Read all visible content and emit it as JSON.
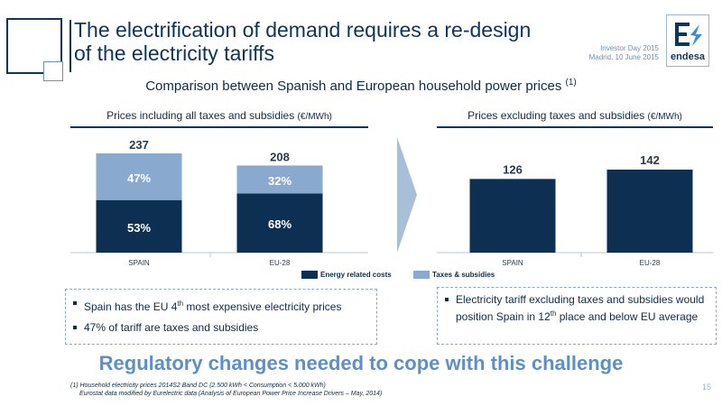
{
  "header": {
    "title_line1": "The electrification of demand requires a re-design",
    "title_line2": "of the electricity tariffs",
    "event_line1": "Investor Day 2015",
    "event_line2": "Madrid, 10 June 2015",
    "logo_text": "endesa"
  },
  "subtitle": {
    "text": "Comparison between Spanish and European household power prices ",
    "footnote_ref": "(1)"
  },
  "left_panel": {
    "title": "Prices including all taxes and subsidies ",
    "unit": "(€/MWh)"
  },
  "right_panel": {
    "title": "Prices excluding taxes and subsidies ",
    "unit": "(€/MWh)"
  },
  "chart_data": [
    {
      "type": "bar",
      "stacked": true,
      "title": "Prices including all taxes and subsidies (€/MWh)",
      "categories": [
        "SPAIN",
        "EU-28"
      ],
      "totals": [
        "237",
        "208"
      ],
      "total_values": [
        237,
        208
      ],
      "series": [
        {
          "name": "Energy related costs",
          "share_labels": [
            "53%",
            "68%"
          ],
          "shares": [
            0.53,
            0.68
          ],
          "color": "#0d2f52"
        },
        {
          "name": "Taxes & subsidies",
          "share_labels": [
            "47%",
            "32%"
          ],
          "shares": [
            0.47,
            0.32
          ],
          "color": "#8aa9cf"
        }
      ],
      "ylim": [
        0,
        237
      ]
    },
    {
      "type": "bar",
      "title": "Prices excluding taxes and subsidies (€/MWh)",
      "categories": [
        "SPAIN",
        "EU-28"
      ],
      "values": [
        126,
        142
      ],
      "value_labels": [
        "126",
        "142"
      ],
      "color": "#0d2f52",
      "ylim": [
        0,
        142
      ]
    }
  ],
  "legend": {
    "energy": "Energy related costs",
    "taxes": "Taxes & subsidies"
  },
  "box_left": {
    "b1_pre": "Spain has the EU 4",
    "b1_sup": "th",
    "b1_post": " most expensive electricity prices",
    "b2": "47% of tariff are taxes and subsidies"
  },
  "box_right": {
    "b1_pre": "Electricity tariff excluding taxes and subsidies would position Spain in 12",
    "b1_sup": "th",
    "b1_post": " place  and below EU average"
  },
  "banner": "Regulatory changes needed to cope with this challenge",
  "footnote": {
    "line1": "(1) Household electricity prices 2014S2 Band DC (2.500 kWh < Consumption < 5.000 kWh)",
    "line2": "Eurostat data modified by Eurelectric data (Analysis of European Power Price Increase Drivers – May, 2014)"
  },
  "page_number": "15",
  "colors": {
    "dark": "#0d2f52",
    "light": "#8aa9cf",
    "accent": "#5d8fc8"
  }
}
